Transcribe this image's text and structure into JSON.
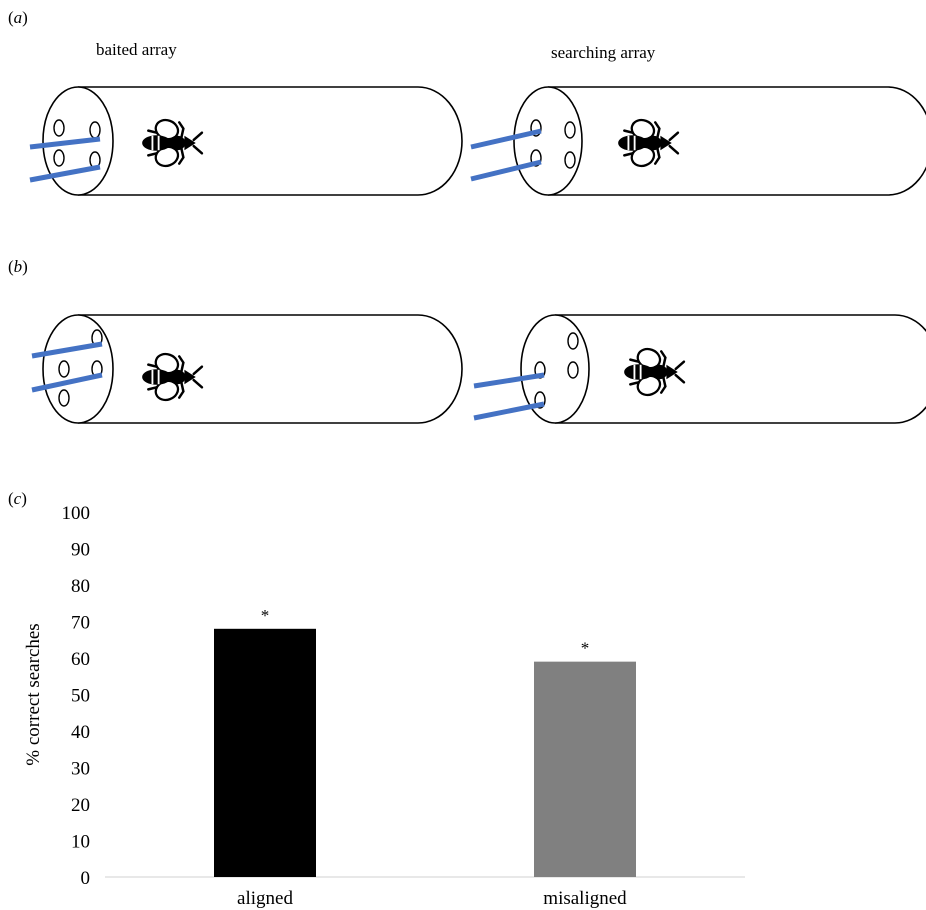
{
  "panels": {
    "a": {
      "open": "(",
      "letter": "a",
      "close": ")"
    },
    "b": {
      "open": "(",
      "letter": "b",
      "close": ")"
    },
    "c": {
      "open": "(",
      "letter": "c",
      "close": ")"
    }
  },
  "arrays": {
    "baited_title": "baited array",
    "searching_title": "searching array"
  },
  "icons": {
    "bee": "bee-icon",
    "tube": "cylinder-tube",
    "rod": "rod-stick"
  },
  "colors": {
    "rod": "#4472C4",
    "aligned_bar": "#000000",
    "misaligned_bar": "#808080"
  },
  "chart_data": {
    "type": "bar",
    "categories": [
      "aligned",
      "misaligned"
    ],
    "values": [
      68,
      59
    ],
    "annotations": [
      "*",
      "*"
    ],
    "ylabel": "% correct searches",
    "ylim": [
      0,
      100
    ],
    "yticks": [
      0,
      10,
      20,
      30,
      40,
      50,
      60,
      70,
      80,
      90,
      100
    ],
    "grid": false
  }
}
